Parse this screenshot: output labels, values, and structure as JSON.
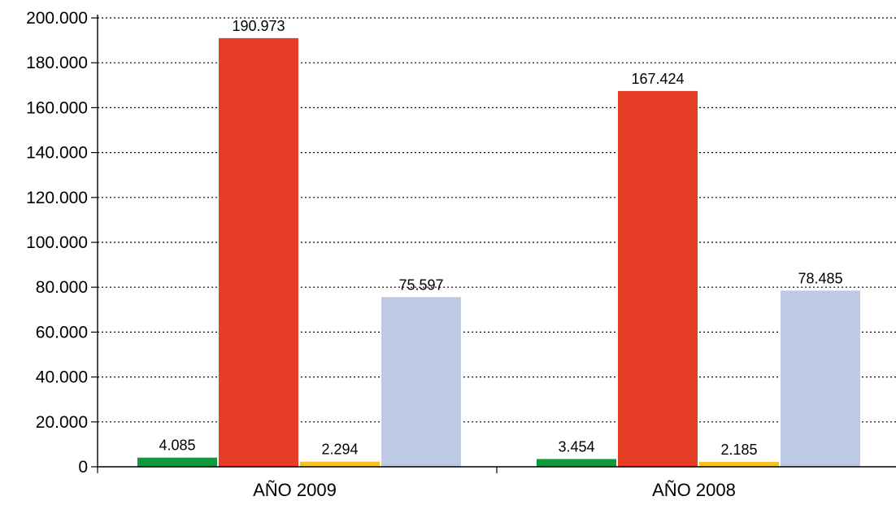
{
  "chart_data": {
    "type": "bar",
    "title": "",
    "xlabel": "",
    "ylabel": "",
    "categories": [
      "AÑO 2009",
      "AÑO 2008"
    ],
    "series": [
      {
        "color": "#0f9a3d",
        "values": [
          4085,
          3454
        ],
        "labels": [
          "4.085",
          "3.454"
        ]
      },
      {
        "color": "#e63d26",
        "values": [
          190973,
          167424
        ],
        "labels": [
          "190.973",
          "167.424"
        ]
      },
      {
        "color": "#f6c323",
        "values": [
          2294,
          2185
        ],
        "labels": [
          "2.294",
          "2.185"
        ]
      },
      {
        "color": "#bccbe3",
        "values": [
          75597,
          78485
        ],
        "labels": [
          "75.597",
          "78.485"
        ]
      }
    ],
    "ylim": [
      0,
      200000
    ],
    "yticks": [
      0,
      20000,
      40000,
      60000,
      80000,
      100000,
      120000,
      140000,
      160000,
      180000,
      200000
    ],
    "ytick_labels": [
      "0",
      "20.000",
      "40.000",
      "60.000",
      "80.000",
      "100.000",
      "120.000",
      "140.000",
      "160.000",
      "180.000",
      "200.000"
    ],
    "grid": "horizontal-dotted",
    "legend": "none"
  }
}
